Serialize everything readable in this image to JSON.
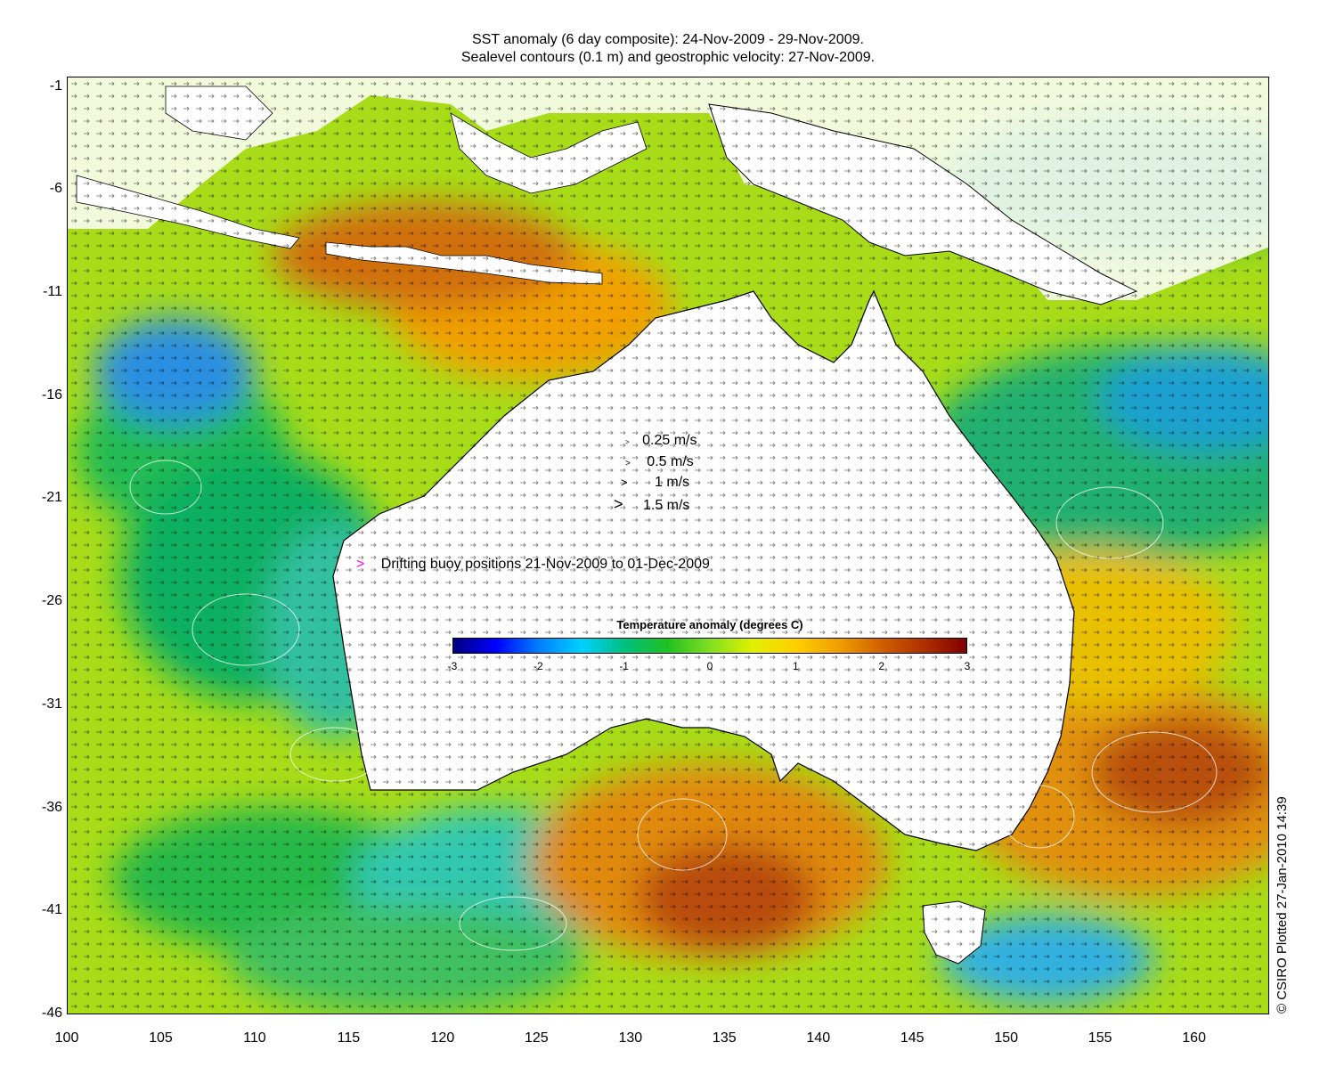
{
  "title": {
    "line1": "SST anomaly (6 day composite): 24-Nov-2009 - 29-Nov-2009.",
    "line2": "Sealevel contours (0.1 m) and geostrophic velocity: 27-Nov-2009."
  },
  "map": {
    "longitude_ticks": [
      "100",
      "105",
      "110",
      "115",
      "120",
      "125",
      "130",
      "135",
      "140",
      "145",
      "150",
      "155",
      "160"
    ],
    "latitude_ticks": [
      "-1",
      "-6",
      "-11",
      "-16",
      "-21",
      "-26",
      "-31",
      "-36",
      "-41",
      "-46"
    ],
    "longitude_range": [
      100,
      164
    ],
    "latitude_range": [
      -46,
      -0.5
    ],
    "land_color": "#ffffff",
    "coastline_color": "#000000",
    "contour_color": "#ffffff",
    "buoy_color": "#ff00ff"
  },
  "velocity_legend": [
    {
      "label": "0.25 m/s"
    },
    {
      "label": "0.5 m/s"
    },
    {
      "label": "1 m/s"
    },
    {
      "label": "1.5 m/s"
    }
  ],
  "buoy_legend": {
    "marker": ">",
    "label": "Drifting buoy positions 21-Nov-2009 to 01-Dec-2009"
  },
  "colorbar": {
    "title": "Temperature anomaly (degrees C)",
    "ticks": [
      "-3",
      "-2",
      "-1",
      "0",
      "1",
      "2",
      "3"
    ],
    "range": [
      -3,
      3
    ],
    "colors": [
      "#00007f",
      "#0000ff",
      "#0080ff",
      "#00d0ff",
      "#00c080",
      "#20c020",
      "#80e020",
      "#e0f000",
      "#ffd000",
      "#f0a000",
      "#d06000",
      "#b03000",
      "#800000"
    ]
  },
  "credit": "© CSIRO Plotted 27-Jan-2010 14:39"
}
